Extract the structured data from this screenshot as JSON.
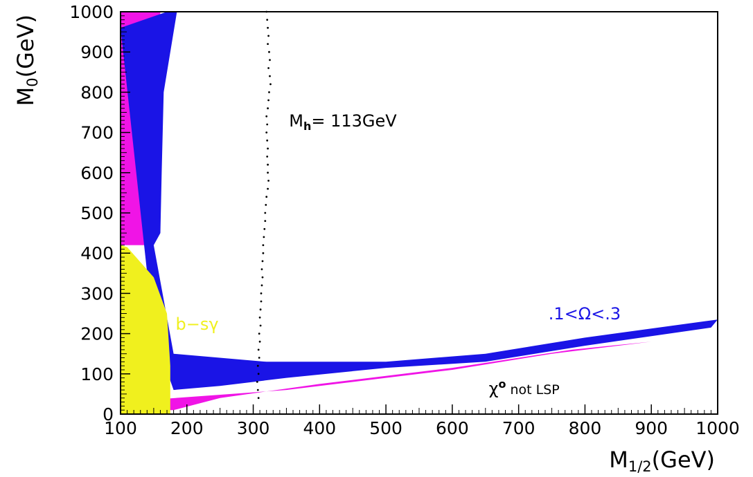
{
  "chart_data": {
    "type": "scatter",
    "x_axis": {
      "title_main": "M",
      "title_sub": "1/2",
      "title_unit": "(GeV)",
      "range": [
        100,
        1000
      ],
      "ticks": [
        100,
        200,
        300,
        400,
        500,
        600,
        700,
        800,
        900,
        1000
      ],
      "tick_labels": [
        "100",
        "200",
        "300",
        "400",
        "500",
        "600",
        "700",
        "800",
        "900",
        "1000"
      ]
    },
    "y_axis": {
      "title_main": "M",
      "title_sub": "0",
      "title_unit": "(GeV)",
      "range": [
        0,
        1000
      ],
      "ticks": [
        0,
        100,
        200,
        300,
        400,
        500,
        600,
        700,
        800,
        900,
        1000
      ],
      "tick_labels": [
        "0",
        "100",
        "200",
        "300",
        "400",
        "500",
        "600",
        "700",
        "800",
        "900",
        "1000"
      ]
    },
    "grid": false,
    "legend": "none",
    "colors": {
      "frame": "#000000",
      "blue": "#1a14e6",
      "magenta": "#f014e6",
      "yellow": "#f0f01e",
      "black": "#000000"
    },
    "regions": [
      {
        "color": "magenta",
        "outline": [
          [
            100,
            1000
          ],
          [
            160,
            1000
          ],
          [
            152,
            800
          ],
          [
            145,
            600
          ],
          [
            140,
            420
          ],
          [
            100,
            420
          ],
          [
            100,
            30
          ],
          [
            350,
            60
          ],
          [
            600,
            110
          ],
          [
            750,
            150
          ],
          [
            900,
            180
          ],
          [
            780,
            160
          ],
          [
            600,
            115
          ],
          [
            400,
            75
          ],
          [
            250,
            40
          ],
          [
            180,
            10
          ],
          [
            100,
            10
          ]
        ]
      },
      {
        "color": "blue",
        "outline": [
          [
            100,
            960
          ],
          [
            170,
            1000
          ],
          [
            185,
            1000
          ],
          [
            165,
            800
          ],
          [
            162,
            600
          ],
          [
            160,
            450
          ],
          [
            150,
            420
          ],
          [
            180,
            150
          ],
          [
            320,
            130
          ],
          [
            500,
            130
          ],
          [
            650,
            150
          ],
          [
            800,
            190
          ],
          [
            1000,
            235
          ],
          [
            990,
            215
          ],
          [
            800,
            170
          ],
          [
            650,
            130
          ],
          [
            500,
            115
          ],
          [
            350,
            90
          ],
          [
            250,
            70
          ],
          [
            180,
            60
          ],
          [
            150,
            200
          ]
        ]
      },
      {
        "color": "yellow",
        "outline": [
          [
            100,
            420
          ],
          [
            110,
            415
          ],
          [
            150,
            340
          ],
          [
            170,
            250
          ],
          [
            175,
            120
          ],
          [
            175,
            0
          ],
          [
            100,
            0
          ]
        ]
      }
    ],
    "series": [
      {
        "color": "black",
        "points": [
          [
            320,
            1000
          ],
          [
            321,
            980
          ],
          [
            322,
            960
          ],
          [
            323,
            940
          ],
          [
            322,
            920
          ],
          [
            324,
            900
          ],
          [
            325,
            880
          ],
          [
            323,
            860
          ],
          [
            325,
            840
          ],
          [
            326,
            820
          ],
          [
            324,
            800
          ],
          [
            323,
            780
          ],
          [
            322,
            760
          ],
          [
            320,
            740
          ],
          [
            321,
            720
          ],
          [
            320,
            700
          ],
          [
            321,
            680
          ],
          [
            322,
            660
          ],
          [
            321,
            640
          ],
          [
            322,
            620
          ],
          [
            322,
            600
          ],
          [
            323,
            580
          ],
          [
            322,
            560
          ],
          [
            320,
            540
          ],
          [
            319,
            520
          ],
          [
            318,
            500
          ],
          [
            318,
            480
          ],
          [
            317,
            460
          ],
          [
            316,
            440
          ],
          [
            315,
            420
          ],
          [
            315,
            400
          ],
          [
            314,
            380
          ],
          [
            313,
            360
          ],
          [
            314,
            340
          ],
          [
            313,
            320
          ],
          [
            312,
            300
          ],
          [
            312,
            280
          ],
          [
            311,
            260
          ],
          [
            310,
            240
          ],
          [
            311,
            220
          ],
          [
            309,
            200
          ],
          [
            310,
            180
          ],
          [
            308,
            160
          ],
          [
            309,
            140
          ],
          [
            307,
            120
          ],
          [
            308,
            100
          ],
          [
            306,
            80
          ],
          [
            307,
            60
          ],
          [
            308,
            40
          ]
        ]
      }
    ],
    "annotations": [
      {
        "main": "M",
        "sub": "h",
        "rest": "= 113GeV",
        "x": 354,
        "y": 715,
        "color": "black"
      },
      {
        "text": "b−sγ",
        "x": 183,
        "y": 210,
        "color": "yellow"
      },
      {
        "text": ".1<Ω<.3",
        "x": 745,
        "y": 235,
        "color": "blue"
      },
      {
        "main": "χ",
        "sup": "o",
        "rest": " not LSP",
        "x": 655,
        "y": 50,
        "color": "black"
      }
    ]
  }
}
